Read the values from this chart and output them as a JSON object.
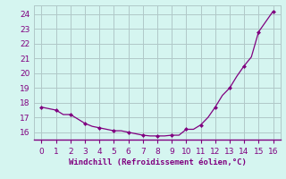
{
  "title": "",
  "xlabel": "Windchill (Refroidissement éolien,°C)",
  "x": [
    0,
    0.5,
    1,
    1.5,
    2,
    2.5,
    3,
    3.5,
    4,
    4.5,
    5,
    5.5,
    6,
    6.5,
    7,
    7.5,
    8,
    8.5,
    9,
    9.5,
    10,
    10.5,
    11,
    11.5,
    12,
    12.5,
    13,
    13.5,
    14,
    14.5,
    15,
    15.5,
    16
  ],
  "y": [
    17.7,
    17.6,
    17.5,
    17.2,
    17.2,
    16.9,
    16.6,
    16.4,
    16.3,
    16.2,
    16.1,
    16.1,
    16.0,
    15.9,
    15.8,
    15.75,
    15.75,
    15.75,
    15.8,
    15.8,
    16.2,
    16.2,
    16.5,
    17.0,
    17.7,
    18.5,
    19.0,
    19.8,
    20.5,
    21.1,
    22.8,
    23.5,
    24.2
  ],
  "marker_x": [
    0,
    1,
    2,
    3,
    4,
    5,
    6,
    7,
    8,
    9,
    10,
    11,
    12,
    13,
    14,
    15,
    16
  ],
  "marker_y": [
    17.7,
    17.5,
    17.2,
    16.6,
    16.3,
    16.1,
    16.0,
    15.8,
    15.75,
    15.8,
    16.2,
    16.5,
    17.7,
    19.0,
    20.5,
    22.8,
    24.2
  ],
  "line_color": "#800080",
  "marker_color": "#800080",
  "bg_color": "#d5f5f0",
  "grid_color": "#b0c8c8",
  "axis_label_color": "#800080",
  "tick_color": "#800080",
  "xlim": [
    -0.5,
    16.5
  ],
  "ylim": [
    15.5,
    24.6
  ],
  "yticks": [
    16,
    17,
    18,
    19,
    20,
    21,
    22,
    23,
    24
  ],
  "xticks": [
    0,
    1,
    2,
    3,
    4,
    5,
    6,
    7,
    8,
    9,
    10,
    11,
    12,
    13,
    14,
    15,
    16
  ]
}
